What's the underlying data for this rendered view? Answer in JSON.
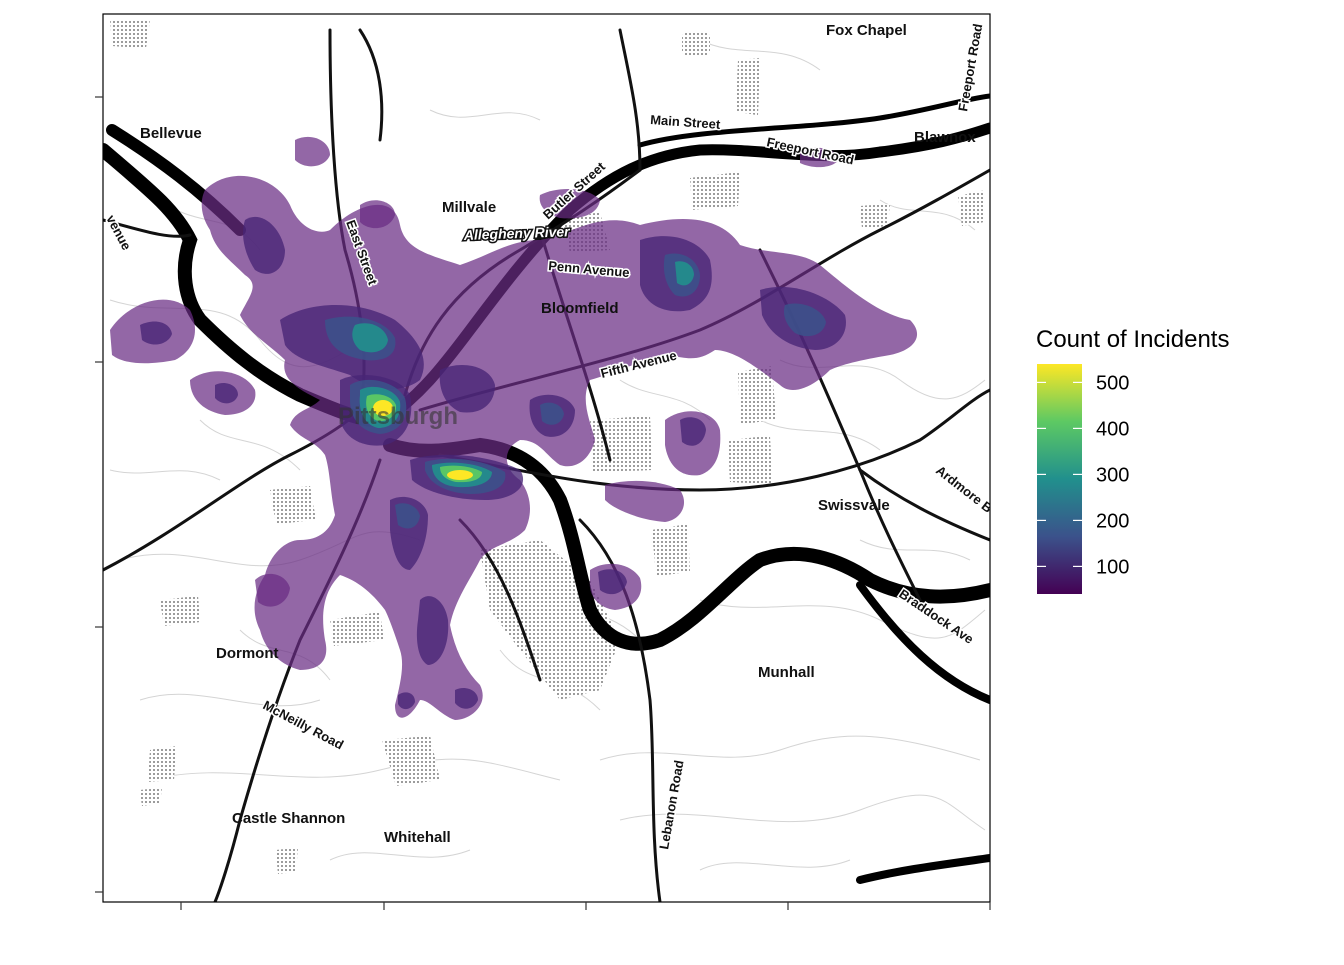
{
  "legend": {
    "title": "Count of Incidents",
    "ticks": [
      {
        "label": "500",
        "value": 500
      },
      {
        "label": "400",
        "value": 400
      },
      {
        "label": "300",
        "value": 300
      },
      {
        "label": "200",
        "value": 200
      },
      {
        "label": "100",
        "value": 100
      }
    ],
    "range": [
      40,
      540
    ],
    "colors": [
      "#440154",
      "#3b528b",
      "#21908d",
      "#5dc963",
      "#fde725"
    ]
  },
  "places": {
    "fox_chapel": "Fox Chapel",
    "bellevue": "Bellevue",
    "millvale": "Millvale",
    "blawnox": "Blawnox",
    "bloomfield": "Bloomfield",
    "pittsburgh": "Pittsburgh",
    "swissvale": "Swissvale",
    "munhall": "Munhall",
    "dormont": "Dormont",
    "castle_shannon": "Castle Shannon",
    "whitehall": "Whitehall"
  },
  "roads": {
    "main_street": "Main Street",
    "freeport_road": "Freeport Road",
    "freeport_road_edge": "Freeport Road",
    "butler_street": "Butler Street",
    "east_street": "East Street",
    "penn_avenue": "Penn Avenue",
    "fifth_avenue": "Fifth Avenue",
    "ardmore": "Ardmore B",
    "braddock": "Braddock Ave",
    "mcneilly_road": "McNeilly Road",
    "lebanon_road": "Lebanon Road",
    "left_edge": "venue"
  },
  "rivers": {
    "allegheny": "Allegheny River"
  }
}
